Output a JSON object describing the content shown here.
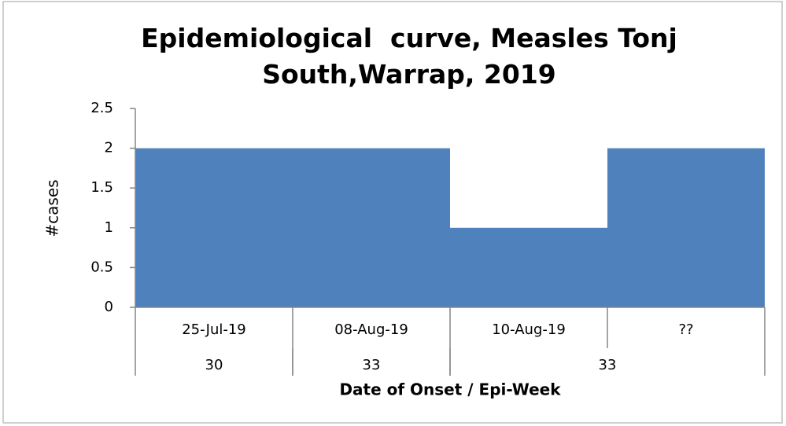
{
  "chart_data": {
    "type": "bar",
    "title": "Epidemiological  curve, Measles Tonj South,Warrap, 2019",
    "categories": [
      "25-Jul-19",
      "08-Aug-19",
      "10-Aug-19",
      "??"
    ],
    "groups": [
      {
        "label": "30",
        "span": 1
      },
      {
        "label": "33",
        "span": 1
      },
      {
        "label": "33",
        "span": 2
      }
    ],
    "values": [
      2,
      2,
      1,
      2
    ],
    "color": "#4f81bd",
    "ylim": [
      0,
      2.5
    ],
    "yticks": [
      0,
      0.5,
      1,
      1.5,
      2,
      2.5
    ],
    "ylabel": "#cases",
    "xlabel": "Date of Onset / Epi-Week",
    "grid": false
  }
}
